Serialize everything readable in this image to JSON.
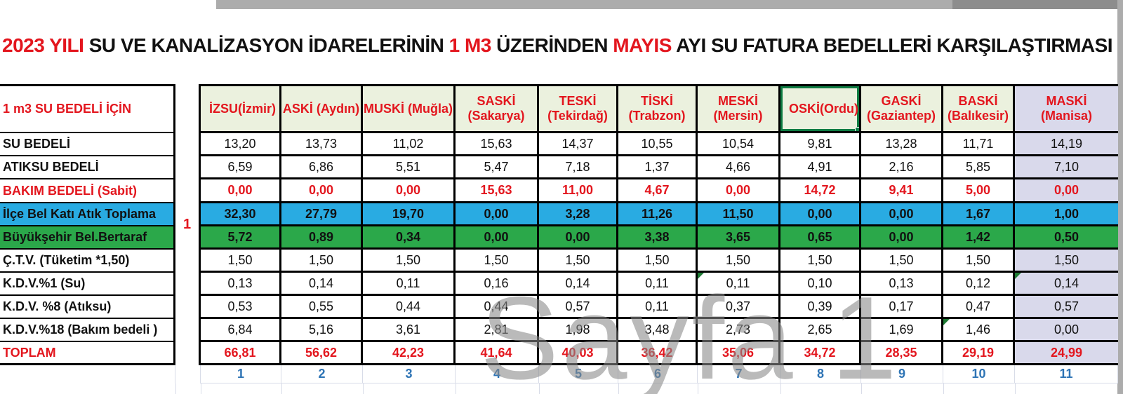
{
  "watermark": "Sayfa 1",
  "title": {
    "segments": [
      {
        "text": "2023 YILI ",
        "color": "red"
      },
      {
        "text": "SU VE KANALİZASYON İDARELERİNİN ",
        "color": "black"
      },
      {
        "text": "1 M3 ",
        "color": "red"
      },
      {
        "text": "ÜZERİNDEN ",
        "color": "black"
      },
      {
        "text": "MAYIS ",
        "color": "red"
      },
      {
        "text": "AYI SU FATURA BEDELLERİ KARŞILAŞTIRMASI",
        "color": "black"
      }
    ]
  },
  "table": {
    "corner_label": "1 m3 SU BEDELİ İÇİN",
    "merged_group_label": "1",
    "columns": [
      {
        "id": "izsu",
        "name": "İZSU",
        "city": "(İzmir)",
        "layout": "spread"
      },
      {
        "id": "aski",
        "name": "ASKİ",
        "city": "(Aydın)",
        "layout": "inline"
      },
      {
        "id": "muski",
        "name": "MUSKİ",
        "city": "(Muğla)",
        "layout": "inline"
      },
      {
        "id": "saski",
        "name": "SASKİ",
        "city": "(Sakarya)",
        "layout": "stacked"
      },
      {
        "id": "teski",
        "name": "TESKİ",
        "city": "(Tekirdağ)",
        "layout": "stacked"
      },
      {
        "id": "tiski",
        "name": "TİSKİ",
        "city": "(Trabzon)",
        "layout": "stacked"
      },
      {
        "id": "meski",
        "name": "MESKİ",
        "city": "(Mersin)",
        "layout": "stacked"
      },
      {
        "id": "oski",
        "name": "OSKİ",
        "city": "(Ordu)",
        "layout": "spread",
        "selected": true
      },
      {
        "id": "gaski",
        "name": "GASKİ",
        "city": "(Gaziantep)",
        "layout": "stacked"
      },
      {
        "id": "baski",
        "name": "BASKİ",
        "city": "(Balıkesir)",
        "layout": "stacked"
      },
      {
        "id": "maski",
        "name": "MASKİ",
        "city": "(Manisa)",
        "layout": "stacked",
        "highlight": true
      }
    ],
    "rows": [
      {
        "label": "SU BEDELİ",
        "style": "normal",
        "values": [
          "13,20",
          "13,73",
          "11,02",
          "15,63",
          "14,37",
          "10,55",
          "10,54",
          "9,81",
          "13,28",
          "11,71",
          "14,19"
        ]
      },
      {
        "label": "ATIKSU BEDELİ",
        "style": "normal",
        "values": [
          "6,59",
          "6,86",
          "5,51",
          "5,47",
          "7,18",
          "1,37",
          "4,66",
          "4,91",
          "2,16",
          "5,85",
          "7,10"
        ]
      },
      {
        "label": "BAKIM BEDELİ (Sabit)",
        "style": "red",
        "values": [
          "0,00",
          "0,00",
          "0,00",
          "15,63",
          "11,00",
          "4,67",
          "0,00",
          "14,72",
          "9,41",
          "5,00",
          "0,00"
        ]
      },
      {
        "label": "İlçe Bel Katı Atık Toplama",
        "style": "blue",
        "values": [
          "32,30",
          "27,79",
          "19,70",
          "0,00",
          "3,28",
          "11,26",
          "11,50",
          "0,00",
          "0,00",
          "1,67",
          "1,00"
        ]
      },
      {
        "label": "Büyükşehir Bel.Bertaraf",
        "style": "green",
        "values": [
          "5,72",
          "0,89",
          "0,34",
          "0,00",
          "0,00",
          "3,38",
          "3,65",
          "0,65",
          "0,00",
          "1,42",
          "0,50"
        ]
      },
      {
        "label": "Ç.T.V. (Tüketim *1,50)",
        "style": "normal",
        "values": [
          "1,50",
          "1,50",
          "1,50",
          "1,50",
          "1,50",
          "1,50",
          "1,50",
          "1,50",
          "1,50",
          "1,50",
          "1,50"
        ]
      },
      {
        "label": "K.D.V.%1  (Su)",
        "style": "normal",
        "corner_marks": [
          6,
          10
        ],
        "values": [
          "0,13",
          "0,14",
          "0,11",
          "0,16",
          "0,14",
          "0,11",
          "0,11",
          "0,10",
          "0,13",
          "0,12",
          "0,14"
        ]
      },
      {
        "label": "K.D.V. %8 (Atıksu)",
        "style": "normal",
        "values": [
          "0,53",
          "0,55",
          "0,44",
          "0,44",
          "0,57",
          "0,11",
          "0,37",
          "0,39",
          "0,17",
          "0,47",
          "0,57"
        ]
      },
      {
        "label": "K.D.V.%18 (Bakım bedeli )",
        "style": "normal",
        "corner_marks": [
          9
        ],
        "values": [
          "6,84",
          "5,16",
          "3,61",
          "2,81",
          "1,98",
          "3,48",
          "2,73",
          "2,65",
          "1,69",
          "1,46",
          "0,00"
        ]
      },
      {
        "label": "TOPLAM",
        "style": "total",
        "values": [
          "66,81",
          "56,62",
          "42,23",
          "41,64",
          "40,03",
          "36,42",
          "35,06",
          "34,72",
          "28,35",
          "29,19",
          "24,99"
        ]
      }
    ],
    "rank_row": [
      "1",
      "2",
      "3",
      "4",
      "5",
      "6",
      "7",
      "8",
      "9",
      "10",
      "11"
    ]
  },
  "colors": {
    "red": "#E3161E",
    "blue_row": "#29ABE2",
    "green_row": "#2BA84A",
    "header_bg": "#EBF1DE",
    "lavender": "#D9D9EB",
    "rank_blue": "#2E74B5",
    "faint_grid": "#D8DCE8",
    "selection_green": "#0E7C42",
    "marker_green": "#1E7B34",
    "watermark_gray": "#8A8A8A"
  }
}
